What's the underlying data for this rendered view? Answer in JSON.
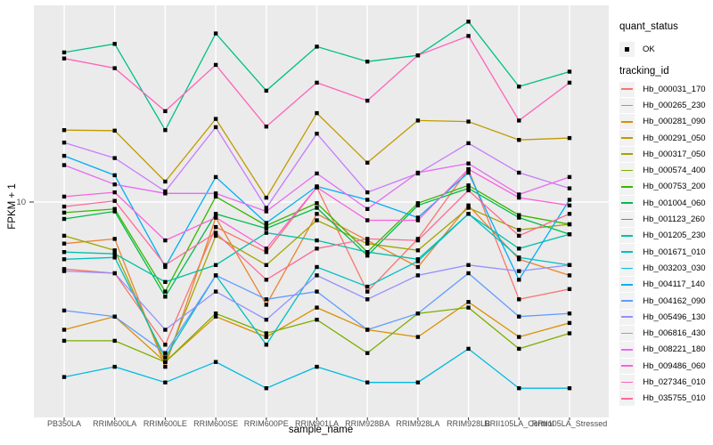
{
  "chart_data": {
    "type": "line",
    "title": "",
    "xlabel": "sample_name",
    "ylabel": "FPKM + 1",
    "y_scale": "log10",
    "y_tick_labels": [
      "10"
    ],
    "y_tick_values": [
      10
    ],
    "grid": "on",
    "legend_position": "right",
    "categories": [
      "PB350LA",
      "RRIM600LA",
      "RRIM600LE",
      "RRIM600SE",
      "RRIM600PE",
      "RRIM901LA",
      "RRIM928BA",
      "RRIM928LA",
      "RRIM928LB",
      "RRII105LA_Control",
      "RRII105LA_Stressed"
    ],
    "series": [
      {
        "name": "Hb_000031_170",
        "color": "#F8766D",
        "values": [
          5.5,
          5.3,
          2.8,
          8.0,
          6.4,
          11.4,
          4.5,
          7.2,
          13.4,
          4.2,
          4.6
        ]
      },
      {
        "name": "Hb_000265_230",
        "color": "#EA8331",
        "values": [
          6.9,
          7.2,
          2.3,
          8.7,
          4.0,
          9.0,
          7.1,
          5.6,
          9.7,
          6.0,
          5.2
        ]
      },
      {
        "name": "Hb_000281_090",
        "color": "#D89000",
        "values": [
          3.2,
          3.6,
          2.4,
          3.6,
          3.0,
          3.9,
          3.2,
          3.0,
          4.1,
          3.0,
          3.4
        ]
      },
      {
        "name": "Hb_000291_050",
        "color": "#C09B00",
        "values": [
          19.0,
          18.9,
          12.0,
          21.0,
          10.4,
          22.1,
          14.2,
          20.7,
          20.5,
          17.4,
          17.7
        ]
      },
      {
        "name": "Hb_000317_050",
        "color": "#A3A500",
        "values": [
          7.4,
          6.5,
          2.4,
          7.4,
          5.7,
          8.5,
          6.9,
          6.5,
          9.5,
          7.8,
          8.2
        ]
      },
      {
        "name": "Hb_000574_400",
        "color": "#7CAE00",
        "values": [
          2.9,
          2.9,
          2.4,
          3.7,
          3.1,
          3.5,
          2.6,
          3.7,
          3.9,
          2.7,
          3.1
        ]
      },
      {
        "name": "Hb_000753_200",
        "color": "#39B600",
        "values": [
          9.1,
          9.4,
          4.5,
          10.5,
          8.1,
          9.9,
          6.4,
          9.9,
          11.6,
          8.9,
          8.2
        ]
      },
      {
        "name": "Hb_001004_060",
        "color": "#00BB4E",
        "values": [
          8.6,
          9.2,
          4.3,
          9.0,
          7.9,
          9.5,
          6.2,
          9.7,
          11.3,
          8.7,
          7.5
        ]
      },
      {
        "name": "Hb_001123_260",
        "color": "#00C087",
        "values": [
          38.0,
          41.0,
          19.0,
          45.0,
          27.0,
          40.0,
          35.0,
          37.0,
          50.0,
          28.0,
          32.0
        ]
      },
      {
        "name": "Hb_001205_230",
        "color": "#00C1A9",
        "values": [
          6.4,
          6.3,
          4.9,
          5.7,
          7.6,
          7.1,
          6.4,
          6.0,
          9.0,
          6.6,
          7.5
        ]
      },
      {
        "name": "Hb_001671_010",
        "color": "#00BFC4",
        "values": [
          6.0,
          6.1,
          2.5,
          5.2,
          2.8,
          5.6,
          4.7,
          5.9,
          9.0,
          6.1,
          5.7
        ]
      },
      {
        "name": "Hb_003203_030",
        "color": "#00BAE2",
        "values": [
          2.1,
          2.3,
          2.0,
          2.4,
          1.9,
          2.3,
          2.0,
          2.0,
          2.7,
          1.9,
          1.9
        ]
      },
      {
        "name": "Hb_004117_140",
        "color": "#00B0F6",
        "values": [
          15.1,
          12.7,
          5.6,
          12.5,
          8.3,
          11.5,
          10.2,
          8.7,
          13.0,
          5.0,
          10.2
        ]
      },
      {
        "name": "Hb_004162_090",
        "color": "#619CFF",
        "values": [
          3.8,
          3.6,
          2.6,
          5.2,
          4.2,
          4.5,
          3.2,
          3.7,
          5.3,
          3.6,
          3.7
        ]
      },
      {
        "name": "Hb_005496_130",
        "color": "#9590FF",
        "values": [
          5.4,
          5.3,
          3.2,
          4.5,
          3.5,
          5.2,
          4.2,
          5.2,
          5.7,
          5.4,
          5.7
        ]
      },
      {
        "name": "Hb_006816_430",
        "color": "#C77CFF",
        "values": [
          17.0,
          14.8,
          11.0,
          19.5,
          9.5,
          18.4,
          10.9,
          12.9,
          16.9,
          13.0,
          11.3
        ]
      },
      {
        "name": "Hb_008221_180",
        "color": "#E76BF3",
        "values": [
          13.9,
          11.7,
          10.8,
          10.8,
          9.2,
          12.9,
          9.4,
          13.0,
          14.1,
          10.7,
          12.5
        ]
      },
      {
        "name": "Hb_009486_060",
        "color": "#FA62DB",
        "values": [
          10.5,
          10.9,
          7.1,
          8.7,
          6.6,
          11.4,
          8.5,
          8.5,
          13.4,
          10.4,
          9.7
        ]
      },
      {
        "name": "Hb_027346_010",
        "color": "#FF62BC",
        "values": [
          36.0,
          33.0,
          22.5,
          34.0,
          19.6,
          29.0,
          24.7,
          37.0,
          44.0,
          20.7,
          29.0
        ]
      },
      {
        "name": "Hb_035755_010",
        "color": "#FF6A98",
        "values": [
          9.6,
          10.1,
          5.7,
          7.6,
          5.0,
          6.6,
          7.2,
          7.1,
          11.1,
          7.4,
          9.0
        ]
      }
    ],
    "legend": {
      "quant_status": {
        "title": "quant_status",
        "items": [
          {
            "label": "OK",
            "marker": "point",
            "color": "#000000"
          }
        ]
      },
      "tracking_id": {
        "title": "tracking_id"
      }
    },
    "style": {
      "panel_bg": "#EBEBEB",
      "grid_color": "#FFFFFF",
      "key_bg": "#F2F2F2",
      "tick_color": "#333333",
      "tick_label_color": "#4D4D4D",
      "axis_title_color": "#000000",
      "point_color": "#000000"
    }
  }
}
